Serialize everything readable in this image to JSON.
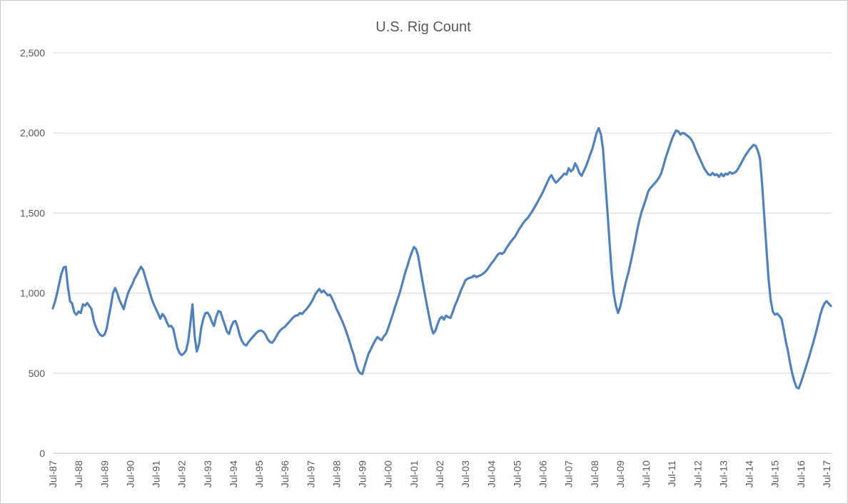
{
  "chart_data": {
    "type": "line",
    "title": "U.S. Rig Count",
    "frequency": "monthly",
    "x_start": "Jul-1987",
    "x_end": "Sep-2017",
    "x_tick_every": 12,
    "x_tick_labels": [
      "Jul-87",
      "Jul-88",
      "Jul-89",
      "Jul-90",
      "Jul-91",
      "Jul-92",
      "Jul-93",
      "Jul-94",
      "Jul-95",
      "Jul-96",
      "Jul-97",
      "Jul-98",
      "Jul-99",
      "Jul-00",
      "Jul-01",
      "Jul-02",
      "Jul-03",
      "Jul-04",
      "Jul-05",
      "Jul-06",
      "Jul-07",
      "Jul-08",
      "Jul-09",
      "Jul-10",
      "Jul-11",
      "Jul-12",
      "Jul-13",
      "Jul-14",
      "Jul-15",
      "Jul-16",
      "Jul-17"
    ],
    "ylim": [
      0,
      2500
    ],
    "ytick_step": 500,
    "ytick_labels": [
      "0",
      "500",
      "1,000",
      "1,500",
      "2,000",
      "2,500"
    ],
    "grid": "horizontal",
    "legend": "none",
    "xlabel": "",
    "ylabel": "",
    "style": {
      "line_color": "#4F81BD",
      "grid_color": "#D9D9D9",
      "axis_color": "#BFBFBF",
      "text_color": "#595959",
      "background": "#FFFFFF",
      "line_width": 3.2
    },
    "series": [
      {
        "name": "U.S. Rig Count",
        "values": [
          905,
          945,
          1000,
          1060,
          1120,
          1160,
          1165,
          1040,
          950,
          935,
          880,
          865,
          885,
          875,
          930,
          922,
          938,
          920,
          900,
          830,
          790,
          760,
          740,
          732,
          740,
          775,
          850,
          920,
          1000,
          1032,
          1000,
          958,
          928,
          900,
          955,
          1000,
          1030,
          1055,
          1090,
          1112,
          1140,
          1165,
          1145,
          1100,
          1055,
          1010,
          965,
          930,
          900,
          872,
          840,
          870,
          852,
          820,
          792,
          796,
          778,
          718,
          655,
          625,
          613,
          624,
          642,
          700,
          810,
          930,
          730,
          636,
          680,
          780,
          840,
          875,
          878,
          858,
          820,
          795,
          850,
          888,
          883,
          840,
          803,
          760,
          745,
          790,
          820,
          826,
          788,
          735,
          700,
          680,
          673,
          694,
          710,
          726,
          740,
          756,
          765,
          766,
          758,
          740,
          712,
          695,
          690,
          706,
          730,
          754,
          770,
          781,
          790,
          806,
          820,
          836,
          850,
          860,
          862,
          876,
          870,
          886,
          900,
          916,
          936,
          960,
          990,
          1010,
          1026,
          1005,
          1016,
          1000,
          986,
          990,
          965,
          935,
          900,
          874,
          845,
          814,
          780,
          740,
          700,
          655,
          615,
          560,
          520,
          500,
          495,
          540,
          585,
          625,
          650,
          680,
          705,
          726,
          715,
          706,
          730,
          745,
          780,
          820,
          860,
          905,
          945,
          985,
          1030,
          1080,
          1130,
          1170,
          1215,
          1255,
          1288,
          1275,
          1230,
          1150,
          1075,
          1000,
          930,
          860,
          790,
          748,
          765,
          806,
          840,
          852,
          835,
          860,
          850,
          845,
          880,
          920,
          950,
          985,
          1020,
          1050,
          1080,
          1090,
          1096,
          1100,
          1110,
          1100,
          1106,
          1112,
          1120,
          1130,
          1145,
          1165,
          1185,
          1200,
          1220,
          1240,
          1250,
          1245,
          1255,
          1280,
          1300,
          1320,
          1336,
          1352,
          1375,
          1400,
          1420,
          1440,
          1456,
          1470,
          1490,
          1510,
          1532,
          1556,
          1580,
          1605,
          1630,
          1660,
          1690,
          1720,
          1736,
          1710,
          1690,
          1700,
          1716,
          1730,
          1746,
          1740,
          1780,
          1760,
          1772,
          1810,
          1786,
          1750,
          1732,
          1760,
          1790,
          1825,
          1865,
          1900,
          1950,
          2000,
          2030,
          1992,
          1900,
          1700,
          1515,
          1320,
          1130,
          995,
          920,
          876,
          915,
          975,
          1035,
          1090,
          1140,
          1200,
          1265,
          1330,
          1400,
          1460,
          1510,
          1550,
          1590,
          1635,
          1655,
          1670,
          1686,
          1700,
          1720,
          1745,
          1790,
          1840,
          1880,
          1920,
          1960,
          1990,
          2015,
          2010,
          1990,
          2000,
          1995,
          1985,
          1975,
          1960,
          1935,
          1900,
          1870,
          1840,
          1810,
          1780,
          1760,
          1740,
          1736,
          1750,
          1736,
          1742,
          1726,
          1746,
          1730,
          1746,
          1740,
          1756,
          1746,
          1750,
          1760,
          1780,
          1805,
          1830,
          1855,
          1875,
          1895,
          1910,
          1925,
          1920,
          1890,
          1840,
          1680,
          1480,
          1280,
          1090,
          955,
          885,
          865,
          872,
          858,
          840,
          775,
          700,
          640,
          565,
          500,
          450,
          412,
          405,
          440,
          480,
          522,
          565,
          608,
          655,
          700,
          750,
          805,
          862,
          905,
          935,
          950,
          935,
          920
        ]
      }
    ]
  }
}
